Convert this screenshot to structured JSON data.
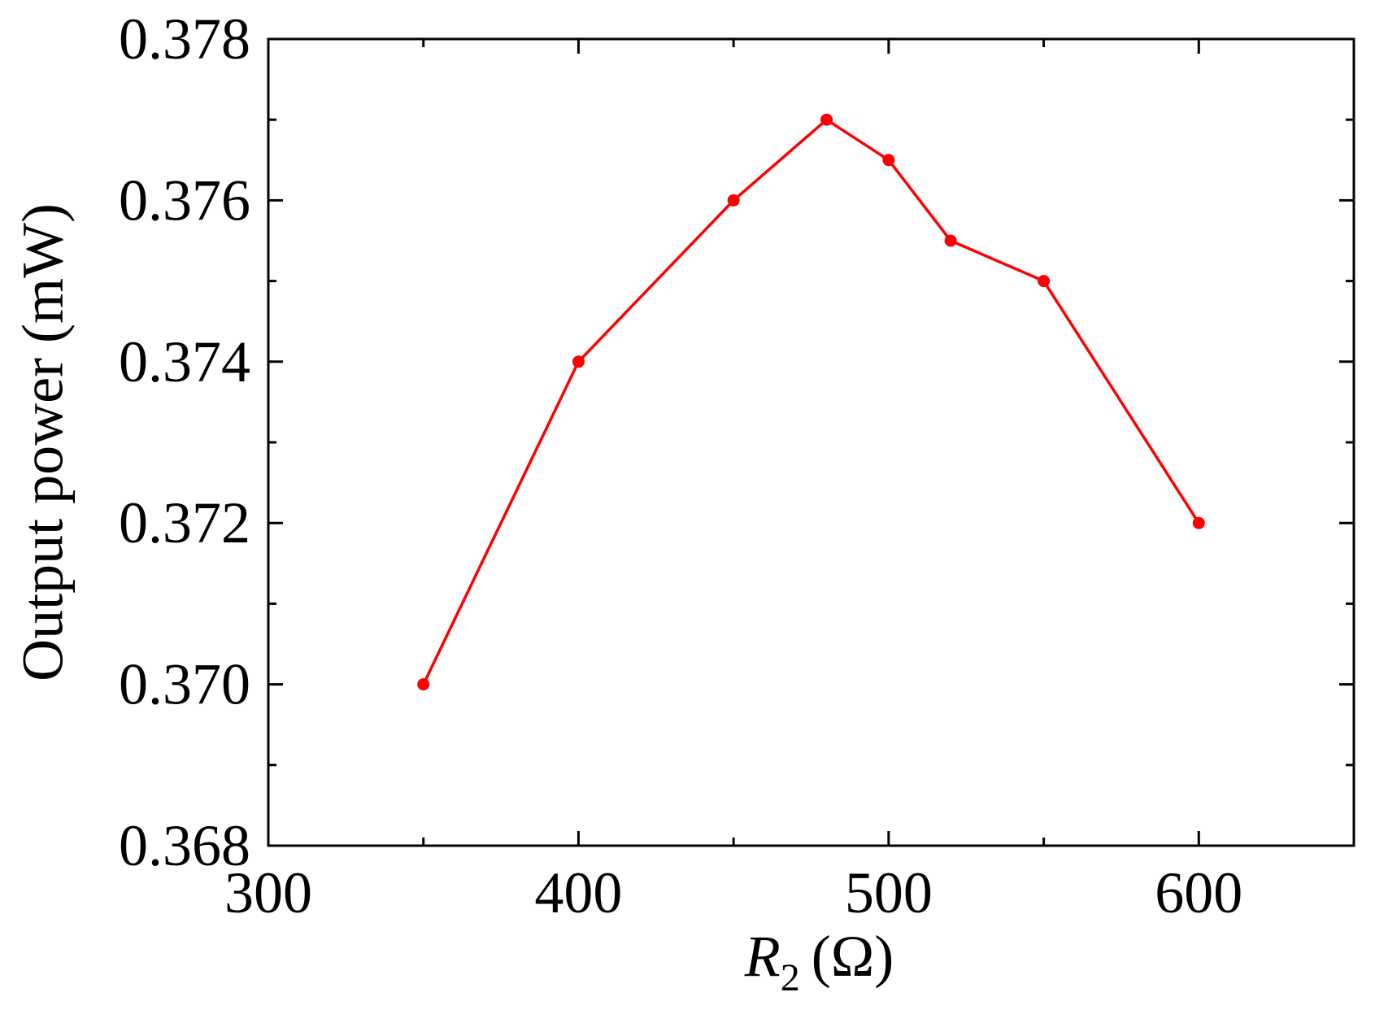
{
  "chart_data": {
    "type": "line",
    "title": "",
    "xlabel": "R",
    "xlabel_subscript": "2",
    "xlabel_unit": "(Ω)",
    "ylabel": "Output power (mW)",
    "xlim": [
      300,
      650
    ],
    "ylim": [
      0.368,
      0.378
    ],
    "x_ticks": [
      300,
      400,
      500,
      600
    ],
    "x_tick_labels": [
      "300",
      "400",
      "500",
      "600"
    ],
    "x_minor_ticks": [
      350,
      450,
      550
    ],
    "y_ticks": [
      0.368,
      0.37,
      0.372,
      0.374,
      0.376,
      0.378
    ],
    "y_tick_labels": [
      "0.368",
      "0.370",
      "0.372",
      "0.374",
      "0.376",
      "0.378"
    ],
    "y_minor_ticks": [
      0.369,
      0.371,
      0.373,
      0.375,
      0.377
    ],
    "grid": false,
    "series": [
      {
        "color": "#ff0000",
        "marker": "circle",
        "x": [
          350,
          400,
          450,
          480,
          500,
          520,
          550,
          600
        ],
        "y": [
          0.37,
          0.374,
          0.376,
          0.377,
          0.3765,
          0.3755,
          0.375,
          0.372
        ]
      }
    ]
  }
}
